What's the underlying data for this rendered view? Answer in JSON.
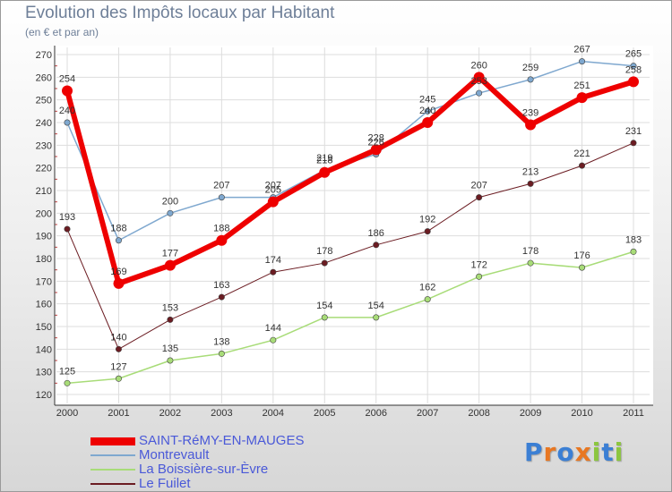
{
  "chart_data": {
    "type": "line",
    "title": "Evolution des Impôts locaux par Habitant",
    "subtitle": "(en € et par an)",
    "xlabel": "",
    "ylabel": "",
    "categories": [
      "2000",
      "2001",
      "2002",
      "2003",
      "2004",
      "2005",
      "2006",
      "2007",
      "2008",
      "2009",
      "2010",
      "2011"
    ],
    "ylim": [
      120,
      270
    ],
    "yticks": [
      120,
      130,
      140,
      150,
      160,
      170,
      180,
      190,
      200,
      210,
      220,
      230,
      240,
      250,
      260,
      270
    ],
    "grid": true,
    "legend": "bottom-left",
    "series": [
      {
        "name": "Le Fuilet",
        "color": "#6b1c22",
        "width": 1,
        "values": [
          193,
          140,
          153,
          163,
          174,
          178,
          186,
          192,
          207,
          213,
          221,
          231
        ]
      },
      {
        "name": "La Boissière-sur-Èvre",
        "color": "#a8dc78",
        "width": 1.5,
        "values": [
          125,
          127,
          135,
          138,
          144,
          154,
          154,
          162,
          172,
          178,
          176,
          183
        ]
      },
      {
        "name": "Montrevault",
        "color": "#7fa8cf",
        "width": 1.5,
        "values": [
          240,
          188,
          200,
          207,
          207,
          219,
          226,
          245,
          253,
          259,
          267,
          265
        ]
      },
      {
        "name": "SAINT-RéMY-EN-MAUGES",
        "color": "#ee0000",
        "width": 6,
        "values": [
          254,
          169,
          177,
          188,
          205,
          218,
          228,
          240,
          260,
          239,
          251,
          258
        ]
      }
    ],
    "legend_order": [
      "SAINT-RéMY-EN-MAUGES",
      "Montrevault",
      "La Boissière-sur-Èvre",
      "Le Fuilet"
    ]
  },
  "logo": {
    "letters": [
      "P",
      "r",
      "o",
      "x",
      "i",
      "t",
      "i"
    ],
    "colors": [
      "#3b7fd4",
      "#e87722",
      "#3b7fd4",
      "#e87722",
      "#8cc63f",
      "#3b7fd4",
      "#8cc63f"
    ]
  }
}
